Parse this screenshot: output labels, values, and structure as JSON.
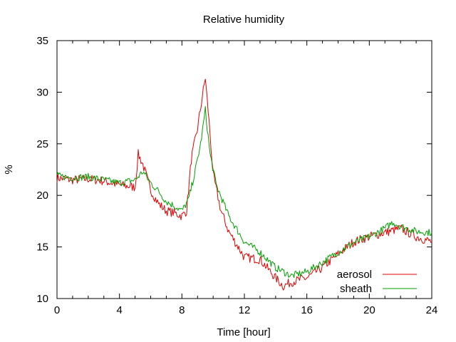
{
  "chart_data": {
    "type": "line",
    "title": "Relative humidity",
    "xlabel": "Time [hour]",
    "ylabel": "%",
    "xlim": [
      0,
      24
    ],
    "ylim": [
      10,
      35
    ],
    "xticks": [
      0,
      4,
      8,
      12,
      16,
      20,
      24
    ],
    "yticks": [
      10,
      15,
      20,
      25,
      30,
      35
    ],
    "grid": false,
    "legend_position": "bottom-right",
    "series": [
      {
        "name": "aerosol",
        "color": "#e00000",
        "x": [
          0,
          1,
          2,
          3,
          4,
          5,
          5.2,
          5.5,
          6,
          6.5,
          7,
          7.5,
          8,
          8.3,
          8.6,
          9,
          9.3,
          9.5,
          9.8,
          10,
          10.5,
          11,
          12,
          13,
          14,
          14.5,
          15,
          16,
          17,
          18,
          19,
          20,
          21,
          22,
          23,
          24
        ],
        "y": [
          21.7,
          21.5,
          21.6,
          21.4,
          21.0,
          20.8,
          24.0,
          23.0,
          20.5,
          19.2,
          18.5,
          18.3,
          18.0,
          18.5,
          23.5,
          26.5,
          29.5,
          31.4,
          26.0,
          22.0,
          18.5,
          16.5,
          14.0,
          13.8,
          12.0,
          11.2,
          11.6,
          12.0,
          13.0,
          14.3,
          15.5,
          16.0,
          16.4,
          16.8,
          16.0,
          15.5
        ]
      },
      {
        "name": "sheath",
        "color": "#00a000",
        "x": [
          0,
          1,
          2,
          3,
          4,
          5,
          5.5,
          6,
          6.5,
          7,
          7.5,
          8,
          8.4,
          8.8,
          9.2,
          9.5,
          9.8,
          10.2,
          11,
          12,
          13,
          14,
          15,
          16,
          17,
          18,
          19,
          20,
          21,
          21.5,
          22,
          23,
          24
        ],
        "y": [
          21.9,
          21.7,
          21.8,
          21.5,
          21.2,
          21.5,
          22.3,
          21.2,
          20.4,
          19.4,
          19.0,
          18.5,
          19.5,
          22.0,
          25.0,
          28.3,
          24.0,
          21.0,
          18.0,
          15.5,
          14.5,
          13.0,
          12.2,
          12.6,
          13.5,
          14.5,
          15.4,
          16.0,
          16.8,
          17.4,
          17.0,
          16.5,
          16.4
        ]
      }
    ]
  }
}
